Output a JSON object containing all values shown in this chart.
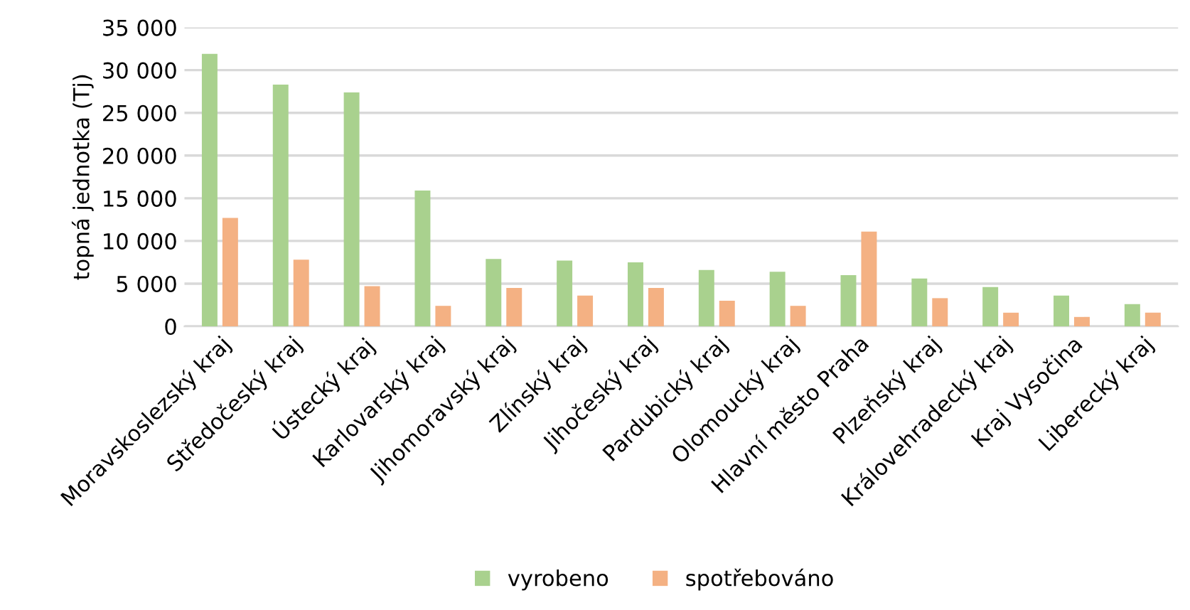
{
  "chart_data": {
    "type": "bar",
    "ylabel": "topná jednotka (Tj)",
    "categories": [
      "Moravskoslezský kraj",
      "Středočeský kraj",
      "Ústecký kraj",
      "Karlovarský kraj",
      "Jihomoravský kraj",
      "Zlínský kraj",
      "Jihočeský kraj",
      "Pardubický kraj",
      "Olomoucký kraj",
      "Hlavní město Praha",
      "Plzeňský kraj",
      "Královehradecký kraj",
      "Kraj Vysočina",
      "Liberecký kraj"
    ],
    "series": [
      {
        "name": "vyrobeno",
        "color": "#a9d18e",
        "values": [
          31900,
          28300,
          27400,
          15900,
          7900,
          7700,
          7500,
          6600,
          6400,
          6000,
          5600,
          4600,
          3600,
          2600
        ]
      },
      {
        "name": "spotřebováno",
        "color": "#f4b183",
        "values": [
          12700,
          7800,
          4700,
          2400,
          4500,
          3600,
          4500,
          3000,
          2400,
          11100,
          3300,
          1600,
          1100,
          1600
        ]
      }
    ],
    "ylim": [
      0,
      35000
    ],
    "yticks": [
      {
        "value": 0,
        "label": "0"
      },
      {
        "value": 5000,
        "label": "5 000"
      },
      {
        "value": 10000,
        "label": "10 000"
      },
      {
        "value": 15000,
        "label": "15 000"
      },
      {
        "value": 20000,
        "label": "20 000"
      },
      {
        "value": 25000,
        "label": "25 000"
      },
      {
        "value": 30000,
        "label": "30 000"
      },
      {
        "value": 35000,
        "label": "35 000"
      }
    ],
    "grid": "y",
    "legend": "bottom"
  }
}
